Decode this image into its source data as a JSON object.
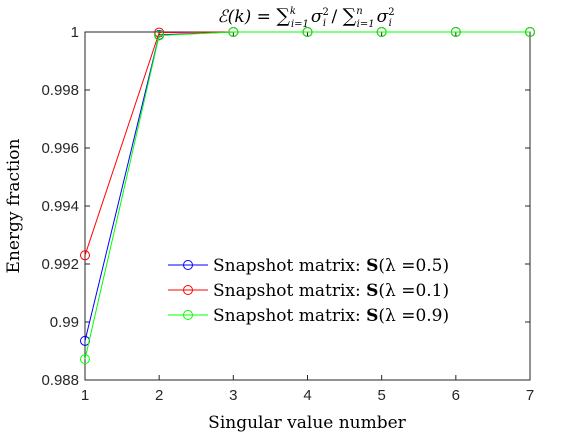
{
  "chart_data": {
    "type": "line",
    "title_parts": {
      "lhs": "ℰ(k) = ",
      "sum1": "∑",
      "sub1": "i=1",
      "sup1": "k",
      "sigma1": "σ",
      "sigsub1": "i",
      "sigsup1": "2",
      "slash": " / ",
      "sum2": "∑",
      "sub2": "i=1",
      "sup2": "n",
      "sigma2": "σ",
      "sigsub2": "i",
      "sigsup2": "2"
    },
    "xlabel": "Singular value number",
    "ylabel": "Energy fraction",
    "x": [
      1,
      2,
      3,
      4,
      5,
      6,
      7
    ],
    "xlim": [
      1,
      7
    ],
    "ylim": [
      0.988,
      1.0
    ],
    "xticks": [
      1,
      2,
      3,
      4,
      5,
      6,
      7
    ],
    "yticks": [
      0.988,
      0.99,
      0.992,
      0.994,
      0.996,
      0.998,
      1
    ],
    "ytick_labels": [
      "0.988",
      "0.99",
      "0.992",
      "0.994",
      "0.996",
      "0.998",
      "1"
    ],
    "grid": false,
    "legend_position": "center-right",
    "series": [
      {
        "name": "Snapshot matrix: S(λ =0.5)",
        "legend_prefix": "Snapshot matrix: ",
        "legend_bold": "S",
        "legend_rest": "(λ =0.5)",
        "color": "#0000ff",
        "values": [
          0.98935,
          0.9999,
          1.0,
          1.0,
          1.0,
          1.0,
          1.0
        ]
      },
      {
        "name": "Snapshot matrix: S(λ =0.1)",
        "legend_prefix": "Snapshot matrix: ",
        "legend_bold": "S",
        "legend_rest": "(λ =0.1)",
        "color": "#ff0000",
        "values": [
          0.9923,
          0.99998,
          1.0,
          1.0,
          1.0,
          1.0,
          1.0
        ]
      },
      {
        "name": "Snapshot matrix: S(λ =0.9)",
        "legend_prefix": "Snapshot matrix: ",
        "legend_bold": "S",
        "legend_rest": "(λ =0.9)",
        "color": "#00ff00",
        "values": [
          0.98872,
          0.99988,
          1.0,
          1.0,
          1.0,
          1.0,
          1.0
        ]
      }
    ]
  }
}
